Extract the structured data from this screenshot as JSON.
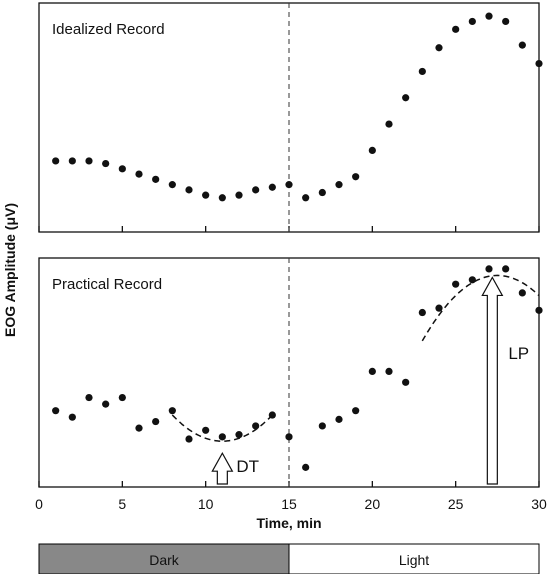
{
  "chart_data": [
    {
      "type": "scatter",
      "title": "Idealized Record",
      "xlim": [
        0,
        30
      ],
      "x": [
        1,
        2,
        3,
        4,
        5,
        6,
        7,
        8,
        9,
        10,
        11,
        12,
        13,
        14,
        15,
        16,
        17,
        18,
        19,
        20,
        21,
        22,
        23,
        24,
        25,
        26,
        27,
        28,
        29,
        30
      ],
      "values": [
        0.62,
        0.62,
        0.62,
        0.61,
        0.59,
        0.57,
        0.55,
        0.53,
        0.51,
        0.49,
        0.48,
        0.49,
        0.51,
        0.52,
        0.53,
        0.48,
        0.5,
        0.53,
        0.56,
        0.66,
        0.76,
        0.86,
        0.96,
        1.05,
        1.12,
        1.15,
        1.17,
        1.15,
        1.06,
        0.99
      ],
      "divider_x": 15,
      "grid": false
    },
    {
      "type": "scatter",
      "title": "Practical Record",
      "xlim": [
        0,
        30
      ],
      "x": [
        1,
        2,
        3,
        4,
        5,
        6,
        7,
        8,
        9,
        10,
        11,
        12,
        13,
        14,
        15,
        16,
        17,
        18,
        19,
        20,
        21,
        22,
        23,
        24,
        25,
        26,
        27,
        28,
        29,
        30
      ],
      "values": [
        0.5,
        0.47,
        0.56,
        0.53,
        0.56,
        0.42,
        0.45,
        0.5,
        0.37,
        0.41,
        0.38,
        0.39,
        0.43,
        0.48,
        0.38,
        0.24,
        0.43,
        0.46,
        0.5,
        0.68,
        0.68,
        0.63,
        0.95,
        0.97,
        1.08,
        1.1,
        1.15,
        1.15,
        1.04,
        0.96
      ],
      "divider_x": 15,
      "trend_curves": [
        {
          "x_range": [
            8,
            14
          ],
          "center": 11,
          "min": 0.36,
          "note": "dashed"
        },
        {
          "x_range": [
            23,
            30
          ],
          "center": 27.5,
          "max": 1.12,
          "note": "dashed"
        }
      ],
      "annotations": [
        {
          "text": "DT",
          "x": 11
        },
        {
          "text": "LP",
          "x": 27.2
        }
      ],
      "grid": false
    }
  ],
  "axes": {
    "ylabel": "EOG Amplitude (μV)",
    "xlabel": "Time, min",
    "xticks": [
      "0",
      "5",
      "10",
      "15",
      "20",
      "25",
      "30"
    ]
  },
  "phases": [
    {
      "label": "Dark",
      "color": "#888888"
    },
    {
      "label": "Light",
      "color": "#ffffff"
    }
  ]
}
